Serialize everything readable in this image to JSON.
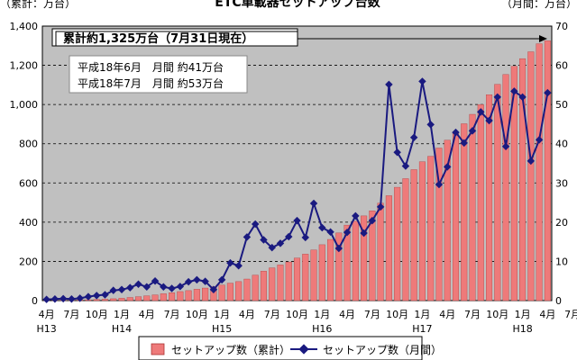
{
  "chart_data": {
    "type": "bar+line",
    "title": "ETC車載器セットアップ台数",
    "left_axis_unit": "（累計：万台）",
    "right_axis_unit": "（月間：万台）",
    "left_ylim": [
      0,
      1400
    ],
    "left_ticks": [
      "0",
      "200",
      "400",
      "600",
      "800",
      "1,000",
      "1,200",
      "1,400"
    ],
    "right_ylim": [
      0,
      70
    ],
    "right_ticks": [
      "0",
      "10",
      "20",
      "30",
      "40",
      "50",
      "60",
      "70"
    ],
    "x_month_labels": [
      {
        "i": 0,
        "label": "4月"
      },
      {
        "i": 3,
        "label": "7月"
      },
      {
        "i": 6,
        "label": "10月"
      },
      {
        "i": 9,
        "label": "1月"
      },
      {
        "i": 12,
        "label": "4月"
      },
      {
        "i": 15,
        "label": "7月"
      },
      {
        "i": 18,
        "label": "10月"
      },
      {
        "i": 21,
        "label": "1月"
      },
      {
        "i": 24,
        "label": "4月"
      },
      {
        "i": 27,
        "label": "7月"
      },
      {
        "i": 30,
        "label": "10月"
      },
      {
        "i": 33,
        "label": "1月"
      },
      {
        "i": 36,
        "label": "4月"
      },
      {
        "i": 39,
        "label": "7月"
      },
      {
        "i": 42,
        "label": "10月"
      },
      {
        "i": 45,
        "label": "1月"
      },
      {
        "i": 48,
        "label": "4月"
      },
      {
        "i": 51,
        "label": "7月"
      },
      {
        "i": 54,
        "label": "10月"
      },
      {
        "i": 57,
        "label": "1月"
      },
      {
        "i": 60,
        "label": "4月"
      },
      {
        "i": 63,
        "label": "7月"
      }
    ],
    "x_year_labels": [
      {
        "i": 0,
        "label": "H13"
      },
      {
        "i": 9,
        "label": "H14"
      },
      {
        "i": 21,
        "label": "H15"
      },
      {
        "i": 33,
        "label": "H16"
      },
      {
        "i": 45,
        "label": "H17"
      },
      {
        "i": 57,
        "label": "H18"
      }
    ],
    "annotation_main": "累計約1,325万台（7月31日現在）",
    "annotation_lines": [
      "平成18年6月　月間 約41万台",
      "平成18年7月　月間 約53万台"
    ],
    "series": [
      {
        "name": "セットアップ数（累計）",
        "axis": "left",
        "color": "#ee7a7a",
        "values": [
          0.3,
          0.7,
          1.3,
          2,
          3,
          4,
          5.5,
          7,
          9.5,
          12,
          16,
          20,
          24,
          29,
          35,
          40,
          46,
          51,
          58,
          64,
          71,
          79,
          89,
          97,
          110,
          130,
          150,
          167,
          182,
          197,
          217,
          237,
          258,
          285,
          312,
          345,
          385,
          405,
          432,
          458,
          497,
          535,
          578,
          622,
          668,
          708,
          736,
          778,
          818,
          855,
          902,
          950,
          1000,
          1050,
          1103,
          1153,
          1195,
          1234,
          1269,
          1310,
          1325
        ]
      },
      {
        "name": "セットアップ数（月間）",
        "axis": "right",
        "color": "#1a1a80",
        "values": [
          0.3,
          0.4,
          0.5,
          0.4,
          0.6,
          1,
          1.3,
          1.5,
          2.6,
          2.8,
          3.3,
          4.2,
          3.5,
          5,
          3.5,
          3.1,
          3.6,
          4.8,
          5.3,
          4.9,
          2.8,
          5.3,
          9.6,
          8.9,
          16.2,
          19.5,
          15.5,
          13.5,
          14.6,
          16.3,
          20.4,
          16.1,
          24.8,
          18.6,
          17.5,
          13.3,
          17.4,
          21.6,
          17.2,
          20.4,
          23.9,
          55.1,
          37.8,
          34.3,
          41.6,
          55.9,
          44.9,
          29.6,
          34.1,
          42.9,
          40.2,
          43.3,
          48.1,
          45.9,
          51.9,
          39.3,
          53.4,
          51.9,
          35.6,
          41,
          53
        ]
      }
    ]
  }
}
